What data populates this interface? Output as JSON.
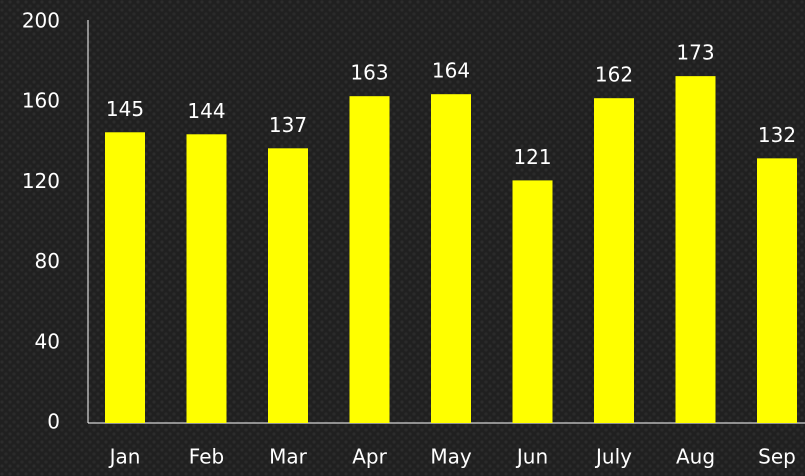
{
  "chart_data": {
    "type": "bar",
    "categories": [
      "Jan",
      "Feb",
      "Mar",
      "Apr",
      "May",
      "Jun",
      "July",
      "Aug",
      "Sep"
    ],
    "values": [
      145,
      144,
      137,
      163,
      164,
      121,
      162,
      173,
      132
    ],
    "color": "#ffff00",
    "ylim": [
      0,
      200
    ],
    "yticks": [
      0,
      40,
      80,
      120,
      160,
      200
    ],
    "grid": false
  }
}
